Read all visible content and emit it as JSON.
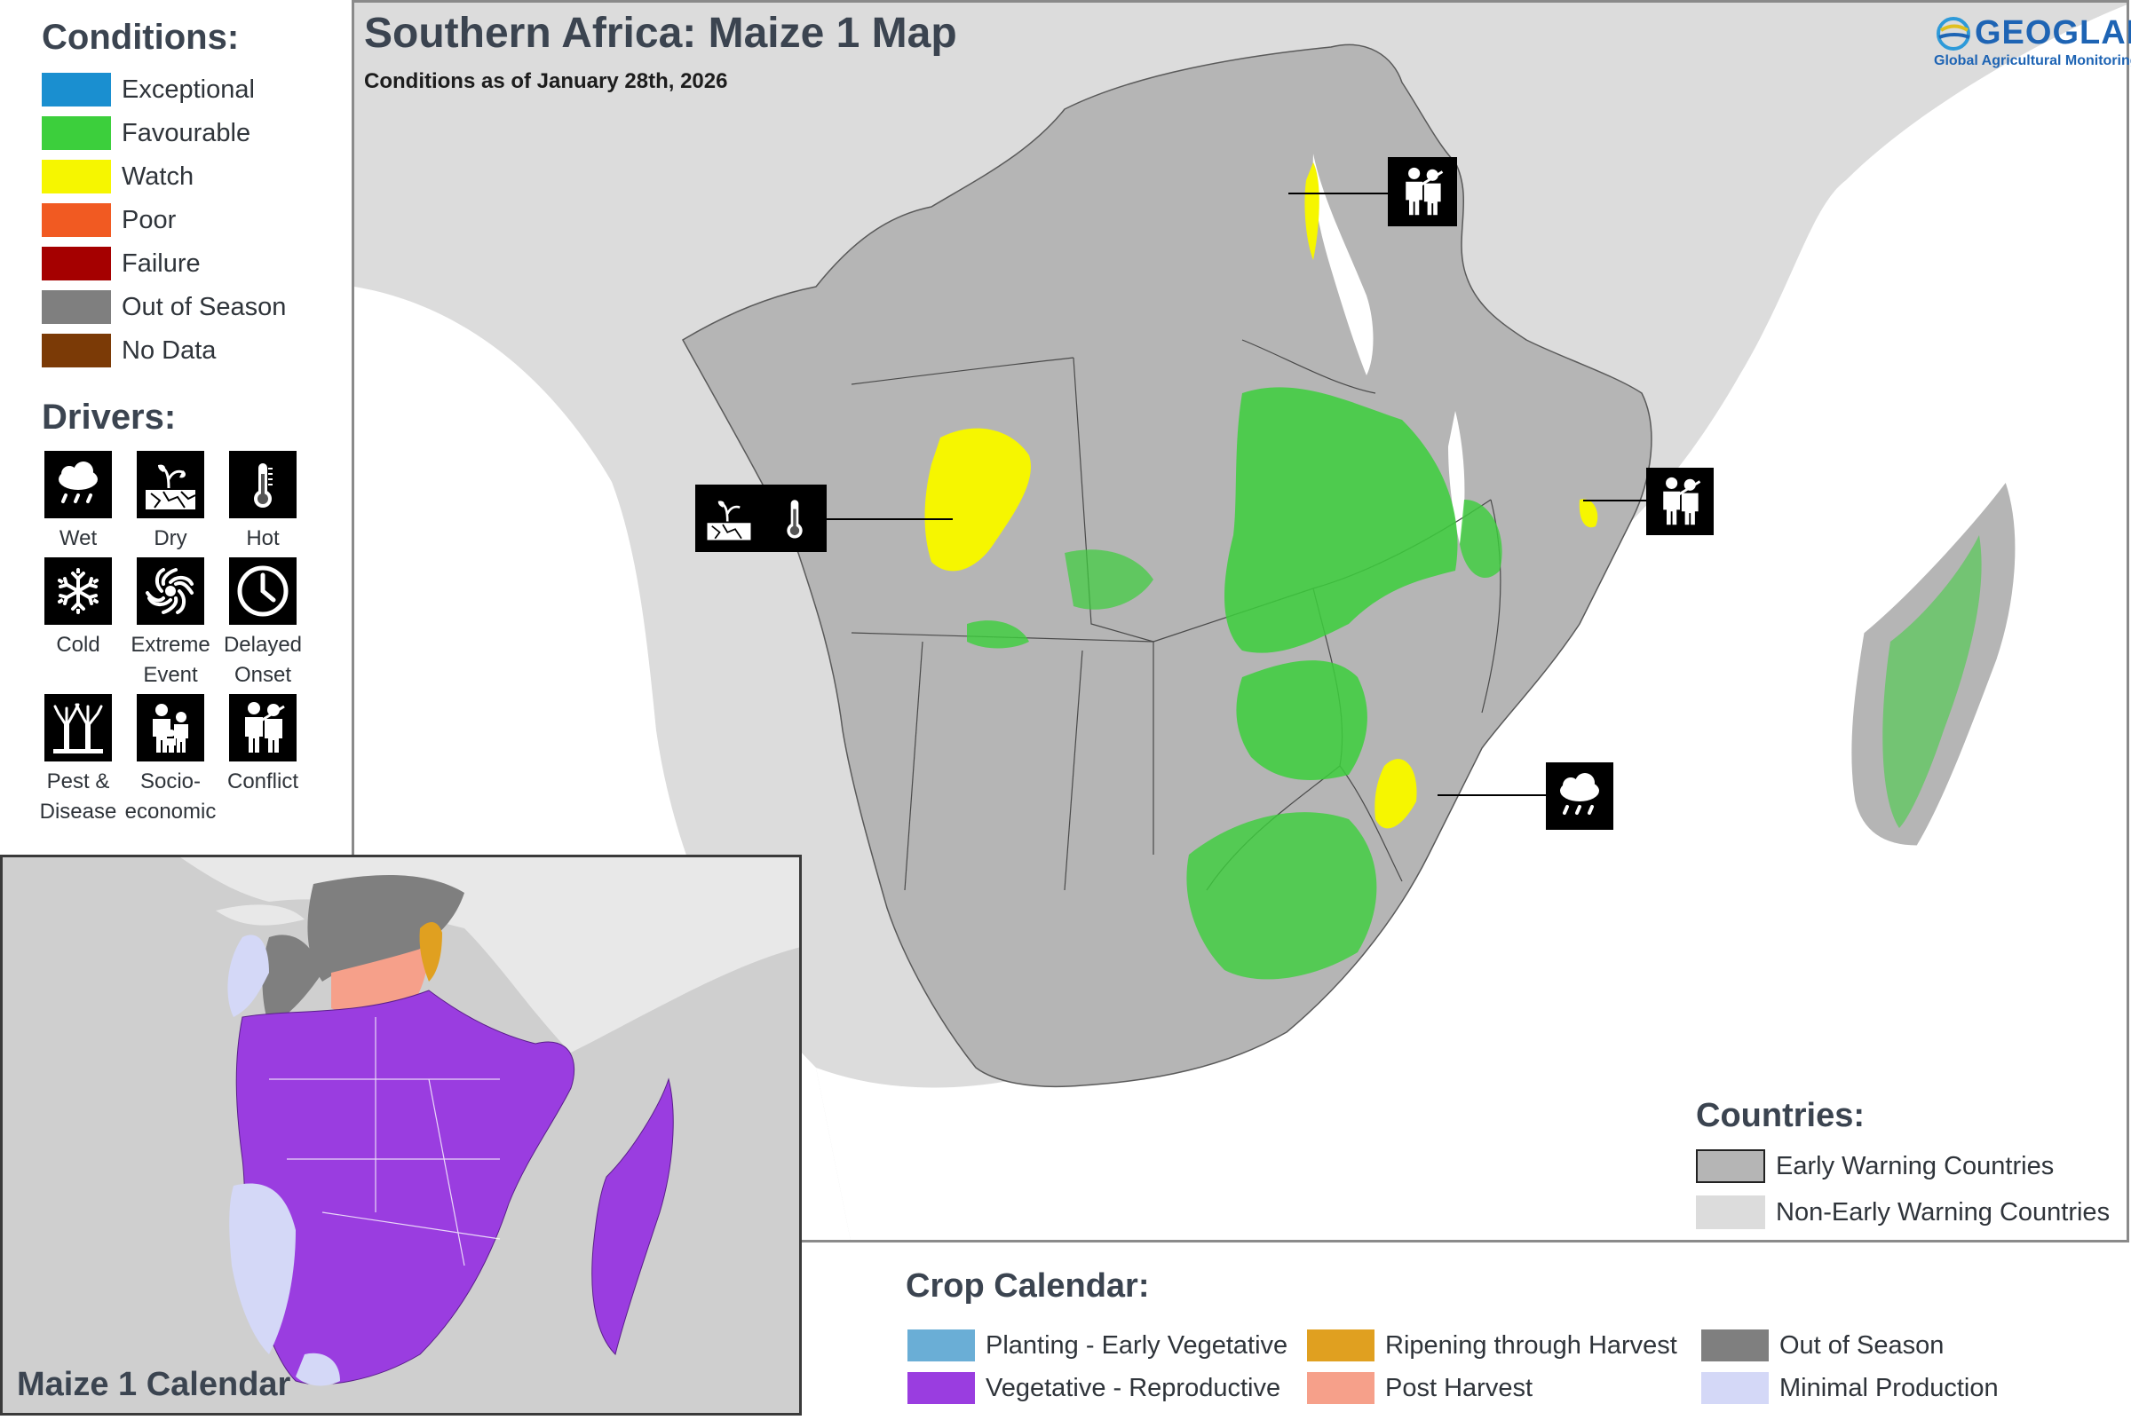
{
  "conditions_legend": {
    "title": "Conditions:",
    "items": [
      {
        "label": "Exceptional",
        "color": "#1a8fd0"
      },
      {
        "label": "Favourable",
        "color": "#3ccf3c"
      },
      {
        "label": "Watch",
        "color": "#f6f600"
      },
      {
        "label": "Poor",
        "color": "#f15a22"
      },
      {
        "label": "Failure",
        "color": "#a50000"
      },
      {
        "label": "Out of Season",
        "color": "#7f7f7f"
      },
      {
        "label": "No Data",
        "color": "#7b3a06"
      }
    ]
  },
  "drivers_legend": {
    "title": "Drivers:",
    "items": [
      {
        "label_line1": "Wet",
        "label_line2": "",
        "icon": "wet-icon"
      },
      {
        "label_line1": "Dry",
        "label_line2": "",
        "icon": "dry-icon"
      },
      {
        "label_line1": "Hot",
        "label_line2": "",
        "icon": "hot-icon"
      },
      {
        "label_line1": "Cold",
        "label_line2": "",
        "icon": "cold-icon"
      },
      {
        "label_line1": "Extreme",
        "label_line2": "Event",
        "icon": "extreme-event-icon"
      },
      {
        "label_line1": "Delayed",
        "label_line2": "Onset",
        "icon": "delayed-onset-icon"
      },
      {
        "label_line1": "Pest &",
        "label_line2": "Disease",
        "icon": "pest-disease-icon"
      },
      {
        "label_line1": "Socio-",
        "label_line2": "economic",
        "icon": "socio-economic-icon"
      },
      {
        "label_line1": "Conflict",
        "label_line2": "",
        "icon": "conflict-icon"
      }
    ]
  },
  "main_map": {
    "title": "Southern Africa: Maize 1 Map",
    "subtitle": "Conditions as of January 28th, 2026",
    "logo_name": "GEOGLAM",
    "logo_tagline": "Global Agricultural Monitoring",
    "colors": {
      "ocean": "#ffffff",
      "early_warning": "#b5b5b5",
      "non_early_warning": "#dcdcdc",
      "favourable": "#3ccf3c",
      "watch": "#f6f600"
    },
    "map_icons": [
      {
        "name": "conflict-icon",
        "where": "north-east Congo border"
      },
      {
        "name": "dry-icon",
        "where": "Angola"
      },
      {
        "name": "hot-icon",
        "where": "Angola"
      },
      {
        "name": "conflict-icon",
        "where": "northern Mozambique"
      },
      {
        "name": "wet-icon",
        "where": "southern Mozambique"
      }
    ]
  },
  "countries_legend": {
    "title": "Countries:",
    "items": [
      {
        "label": "Early Warning Countries",
        "color": "#b5b5b5"
      },
      {
        "label": "Non-Early Warning Countries",
        "color": "#dcdcdc"
      }
    ]
  },
  "inset_map": {
    "title": "Maize 1 Calendar",
    "colors": {
      "vegetative": "#9a3de0",
      "out_of_season": "#7f7f7f",
      "post_harvest": "#f6a08a",
      "ripening": "#e0a020",
      "minimal": "#d4d8f7"
    }
  },
  "crop_calendar_legend": {
    "title": "Crop Calendar:",
    "items": [
      {
        "label": "Planting - Early Vegetative",
        "color": "#6aaed6"
      },
      {
        "label": "Ripening through Harvest",
        "color": "#e0a020"
      },
      {
        "label": "Out of Season",
        "color": "#7f7f7f"
      },
      {
        "label": "Vegetative - Reproductive",
        "color": "#9a3de0"
      },
      {
        "label": "Post Harvest",
        "color": "#f6a08a"
      },
      {
        "label": "Minimal Production",
        "color": "#d4d8f7"
      }
    ]
  }
}
